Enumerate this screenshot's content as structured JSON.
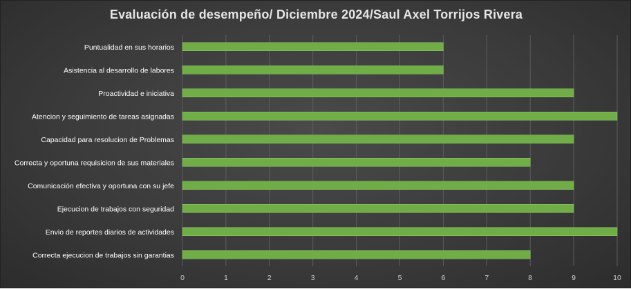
{
  "chart_data": {
    "type": "bar",
    "orientation": "horizontal",
    "title": "Evaluación de desempeño/ Diciembre 2024/Saul Axel Torrijos Rivera",
    "xlabel": "",
    "ylabel": "",
    "xlim": [
      0,
      10
    ],
    "ticks": [
      "0",
      "1",
      "2",
      "3",
      "4",
      "5",
      "6",
      "7",
      "8",
      "9",
      "10"
    ],
    "grid": true,
    "legend": "none",
    "bar_color": "#70ad47",
    "categories": [
      "Puntualidad en sus horarios",
      "Asistencia al desarrollo de labores",
      "Proactividad e iniciativa",
      "Atencion y seguimiento de tareas asignadas",
      "Capacidad para resolucion de Problemas",
      "Correcta y oportuna requisicion de sus materiales",
      "Comunicación  efectiva y oportuna con su jefe",
      "Ejecucion de trabajos con seguridad",
      "Envio de reportes diarios de actividades",
      "Correcta ejecucion de trabajos sin garantias"
    ],
    "values": [
      6,
      6,
      9,
      10,
      9,
      8,
      9,
      9,
      10,
      8
    ]
  }
}
